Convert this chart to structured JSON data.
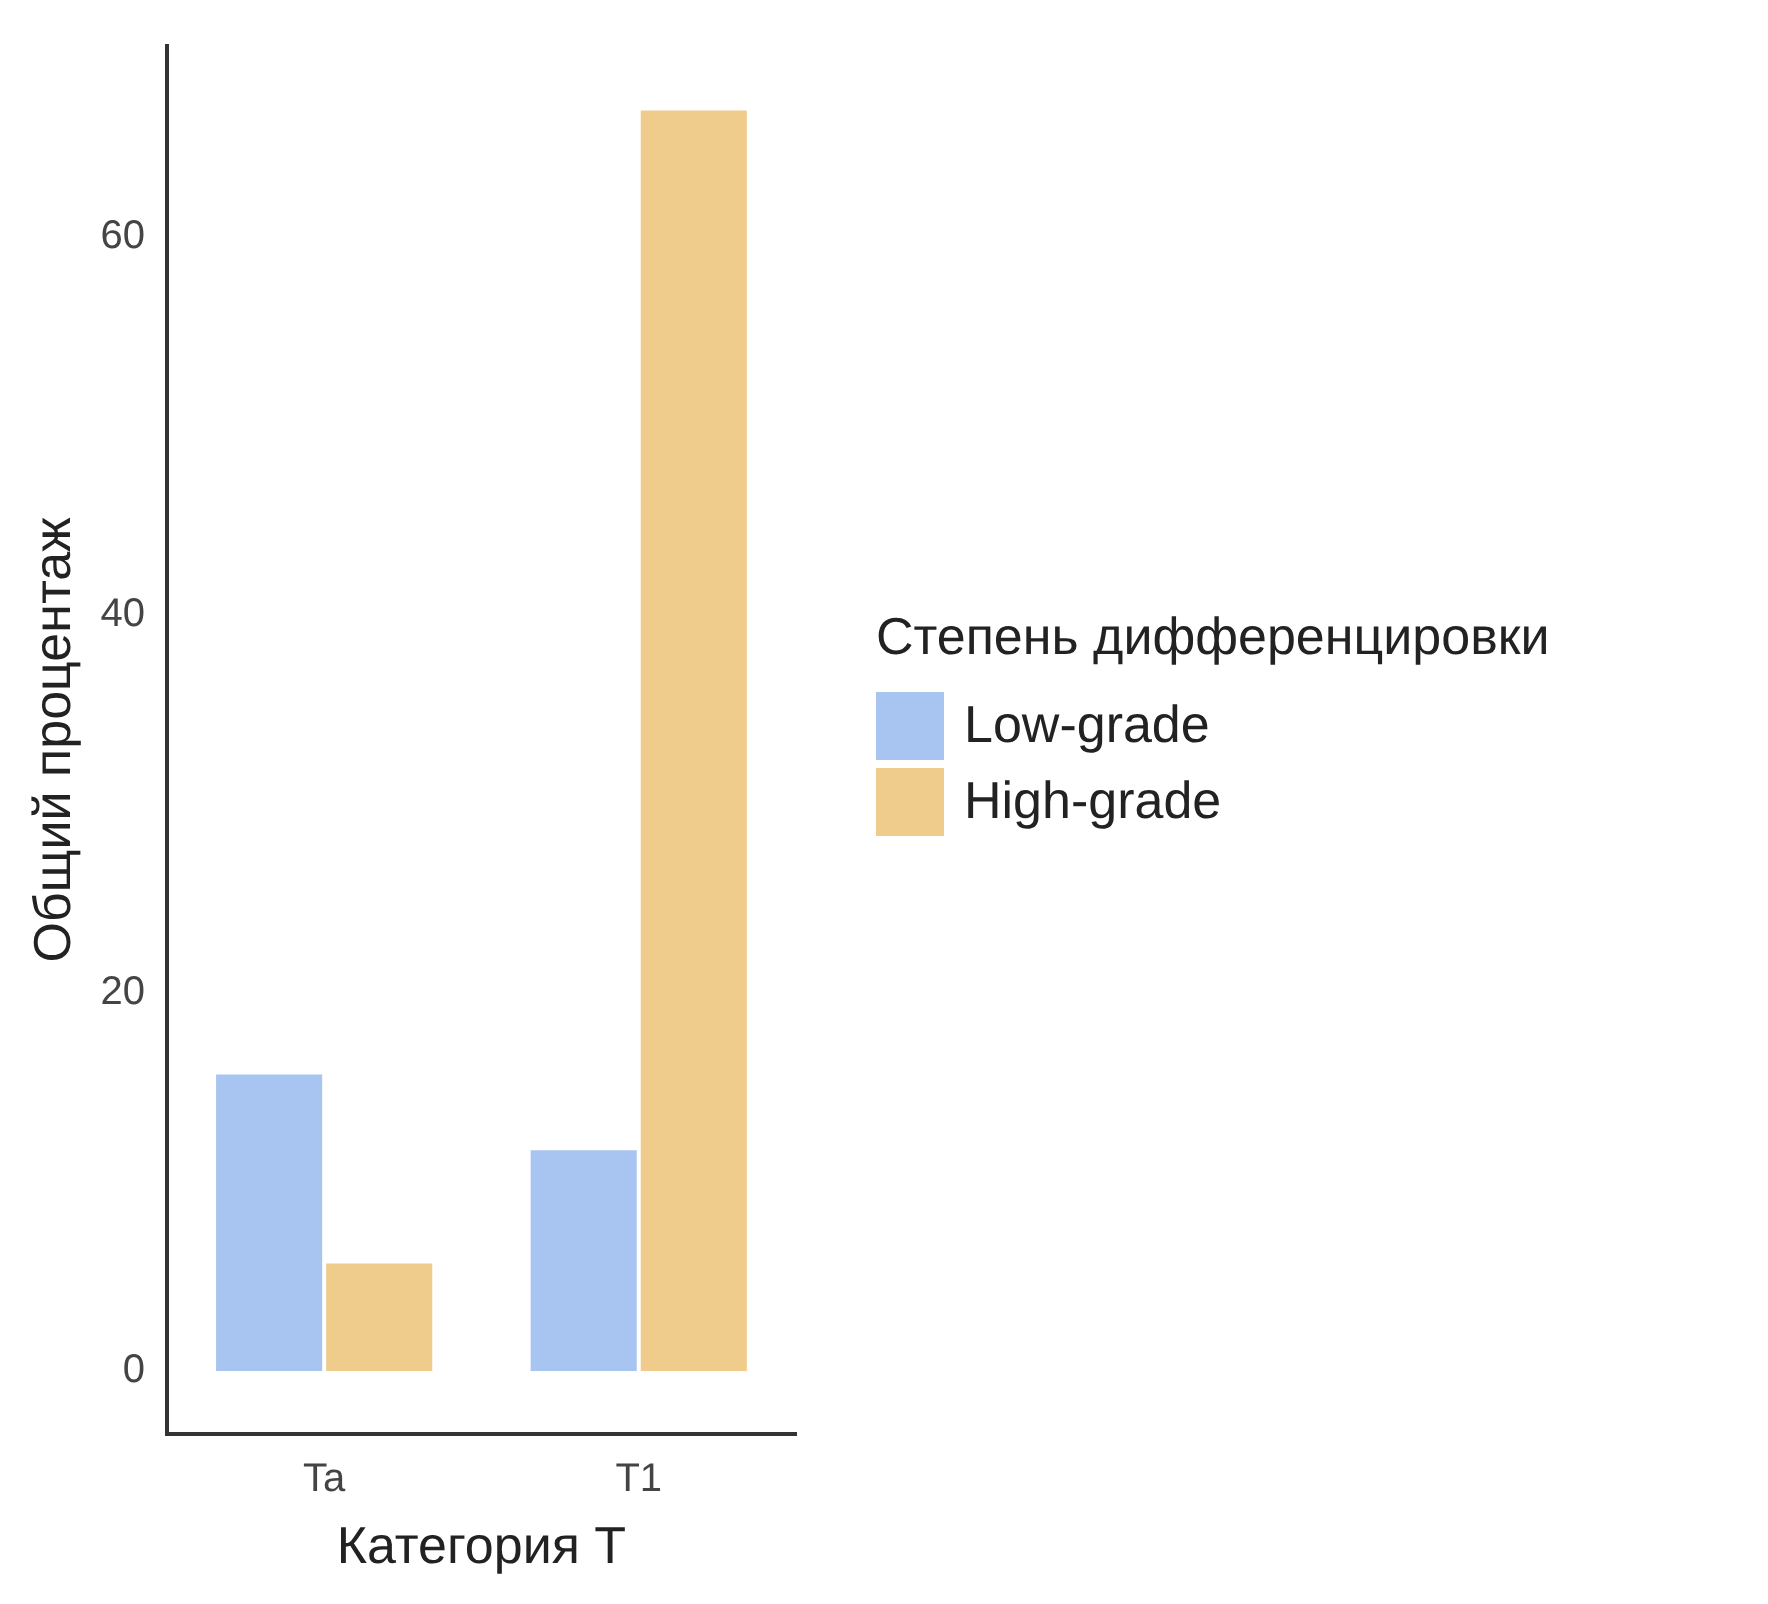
{
  "chart_data": {
    "type": "bar",
    "xlabel": "Категория T",
    "ylabel": "Общий процентаж",
    "legend_title": "Степень дифференцировки",
    "categories": [
      "Ta",
      "T1"
    ],
    "series": [
      {
        "name": "Low-grade",
        "color": "#a8c4f0",
        "values": [
          15.8,
          11.8
        ]
      },
      {
        "name": "High-grade",
        "color": "#f0cc8c",
        "values": [
          5.8,
          66.8
        ]
      }
    ],
    "ylim": [
      -3.3,
      70.1
    ],
    "yticks": [
      0,
      20,
      40,
      60
    ],
    "grid": false,
    "legend": "right"
  }
}
